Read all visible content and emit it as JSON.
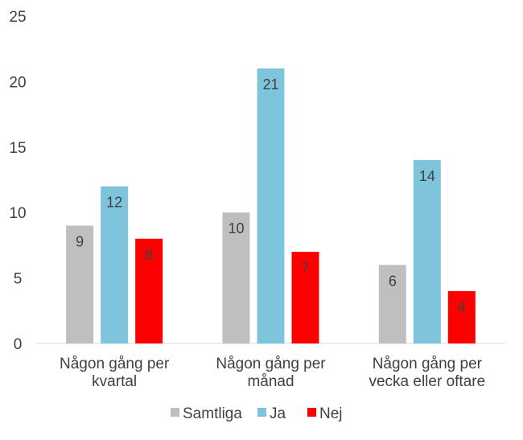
{
  "chart_data": {
    "type": "bar",
    "title": "",
    "xlabel": "",
    "ylabel": "",
    "ylim": [
      0,
      25
    ],
    "yticks": [
      0,
      5,
      10,
      15,
      20,
      25
    ],
    "grid": false,
    "legend_position": "bottom",
    "categories": [
      [
        "Någon gång per",
        "kvartal"
      ],
      [
        "Någon gång per",
        "månad"
      ],
      [
        "Någon gång per",
        "vecka eller oftare"
      ]
    ],
    "series": [
      {
        "name": "Samtliga",
        "color": "#bfbfbf",
        "values": [
          9,
          10,
          6
        ]
      },
      {
        "name": "Ja",
        "color": "#7fc4dd",
        "values": [
          12,
          21,
          14
        ]
      },
      {
        "name": "Nej",
        "color": "#ff0000",
        "values": [
          8,
          7,
          4
        ]
      }
    ]
  }
}
